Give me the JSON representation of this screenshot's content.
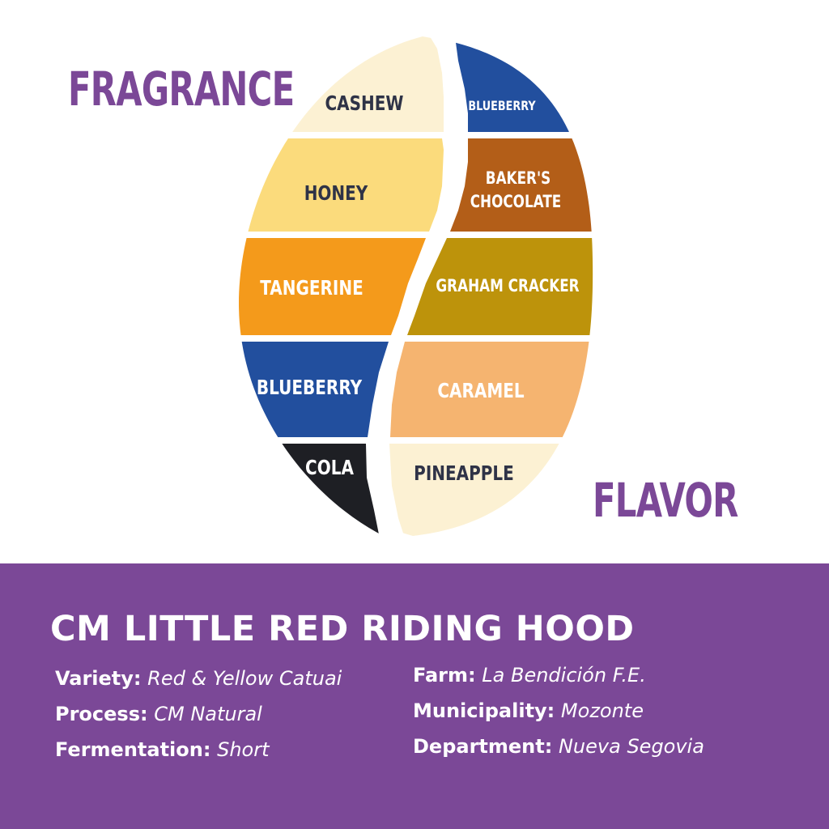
{
  "headings": {
    "fragrance": "FRAGRANCE",
    "flavor": "FLAVOR"
  },
  "colors": {
    "accent_purple": "#7b4897",
    "label_dark": "#2f3347",
    "label_light": "#ffffff"
  },
  "fragrance_notes": [
    {
      "label": "CASHEW",
      "color": "#fcf1d3"
    },
    {
      "label": "HONEY",
      "color": "#fbdb7c"
    },
    {
      "label": "TANGERINE",
      "color": "#f49a1b"
    },
    {
      "label": "BLUEBERRY",
      "color": "#224f9e"
    },
    {
      "label": "COLA",
      "color": "#1e1f24"
    }
  ],
  "flavor_notes": [
    {
      "label": "BLUEBERRY",
      "color": "#224f9e"
    },
    {
      "label": "BAKER'S CHOCOLATE",
      "lines": [
        "BAKER'S",
        "CHOCOLATE"
      ],
      "color": "#b35e18"
    },
    {
      "label": "GRAHAM CRACKER",
      "color": "#bd930b"
    },
    {
      "label": "CARAMEL",
      "color": "#f5b470"
    },
    {
      "label": "PINEAPPLE",
      "color": "#fcf1d3"
    }
  ],
  "product": {
    "name": "CM LITTLE RED RIDING HOOD",
    "details_left": [
      {
        "label": "Variety:",
        "value": "Red & Yellow Catuai"
      },
      {
        "label": "Process:",
        "value": "CM Natural"
      },
      {
        "label": "Fermentation:",
        "value": "Short"
      }
    ],
    "details_right": [
      {
        "label": "Farm:",
        "value": "La Bendición F.E."
      },
      {
        "label": "Municipality:",
        "value": "Mozonte"
      },
      {
        "label": "Department:",
        "value": "Nueva Segovia"
      }
    ]
  }
}
